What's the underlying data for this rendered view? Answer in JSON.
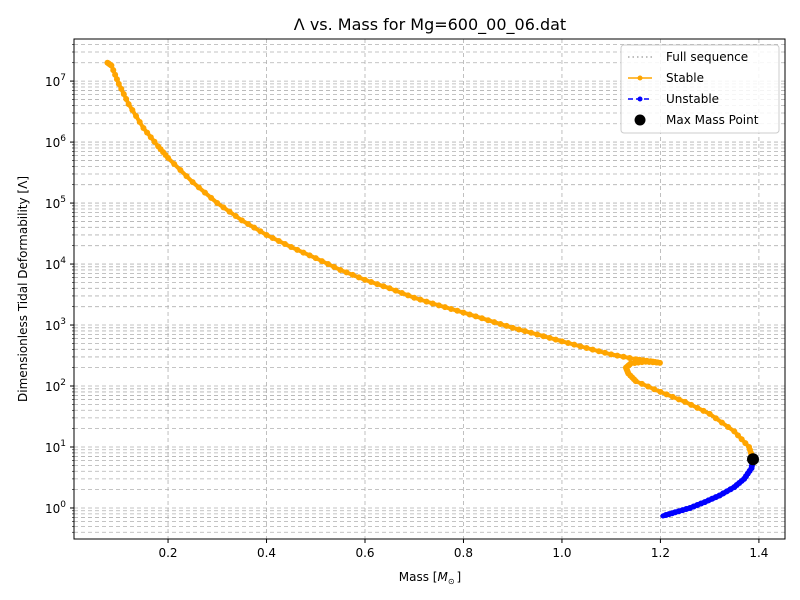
{
  "chart_data": {
    "type": "line",
    "title": "Λ vs. Mass for Mg=600_00_06.dat",
    "xlabel": "Mass [M_⊙]",
    "ylabel": "Dimensionless Tidal Deformability [Λ]",
    "xscale": "linear",
    "yscale": "log",
    "xlim": [
      0.009,
      1.453
    ],
    "ylim": [
      0.31,
      49000000
    ],
    "xticks": [
      0.2,
      0.4,
      0.6,
      0.8,
      1.0,
      1.2,
      1.4
    ],
    "xtick_labels": [
      "0.2",
      "0.4",
      "0.6",
      "0.8",
      "1.0",
      "1.2",
      "1.4"
    ],
    "yticks": [
      1,
      10,
      100,
      1000,
      10000,
      100000,
      1000000,
      10000000
    ],
    "ytick_labels": [
      "10^0",
      "10^1",
      "10^2",
      "10^3",
      "10^4",
      "10^5",
      "10^6",
      "10^7"
    ],
    "grid": true,
    "grid_style": "dashed",
    "legend_position": "upper right",
    "legend": [
      "Full sequence",
      "Stable",
      "Unstable",
      "Max Mass Point"
    ],
    "series": [
      {
        "name": "Full sequence",
        "style": "dotted",
        "color": "#aaaaaa",
        "x": [],
        "y": []
      },
      {
        "name": "Stable",
        "style": "solid-with-markers",
        "color": "#ffa500",
        "x": [
          0.077,
          0.085,
          0.1,
          0.12,
          0.15,
          0.18,
          0.2,
          0.25,
          0.3,
          0.35,
          0.4,
          0.45,
          0.5,
          0.55,
          0.6,
          0.65,
          0.7,
          0.75,
          0.8,
          0.85,
          0.9,
          0.95,
          1.0,
          1.05,
          1.1,
          1.15,
          1.18,
          1.199,
          1.17,
          1.14,
          1.13,
          1.135,
          1.15,
          1.2,
          1.25,
          1.3,
          1.35,
          1.38,
          1.388
        ],
        "y": [
          20000000,
          18000000,
          9000000,
          4200000,
          1700000,
          850000,
          550000,
          220000,
          100000,
          52000,
          30000,
          19000,
          12500,
          8000,
          5500,
          4000,
          2800,
          2100,
          1600,
          1200,
          900,
          700,
          540,
          420,
          330,
          275,
          255,
          240,
          250,
          235,
          200,
          160,
          120,
          80,
          55,
          35,
          18,
          10,
          6.3
        ]
      },
      {
        "name": "Unstable",
        "style": "dashed-with-markers",
        "color": "#0000ff",
        "x": [
          1.388,
          1.385,
          1.37,
          1.35,
          1.32,
          1.29,
          1.26,
          1.23,
          1.205
        ],
        "y": [
          6.3,
          4.5,
          3.0,
          2.2,
          1.6,
          1.25,
          1.0,
          0.85,
          0.74
        ]
      },
      {
        "name": "Max Mass Point",
        "style": "marker",
        "color": "#000000",
        "x": [
          1.388
        ],
        "y": [
          6.3
        ]
      }
    ]
  },
  "figure": {
    "title": "Λ vs. Mass for Mg=600_00_06.dat",
    "xlabel_main": "Mass [",
    "xlabel_sym": "M",
    "xlabel_sub": "⊙",
    "xlabel_end": "]",
    "ylabel": "Dimensionless Tidal Deformability [Λ]",
    "legend": {
      "items": [
        {
          "label": "Full sequence"
        },
        {
          "label": "Stable"
        },
        {
          "label": "Unstable"
        },
        {
          "label": "Max Mass Point"
        }
      ]
    },
    "colors": {
      "stable": "#ffa500",
      "unstable": "#0000ff",
      "max_point": "#000000",
      "grid": "#b0b0b0",
      "full_sequence": "#aaaaaa"
    }
  }
}
